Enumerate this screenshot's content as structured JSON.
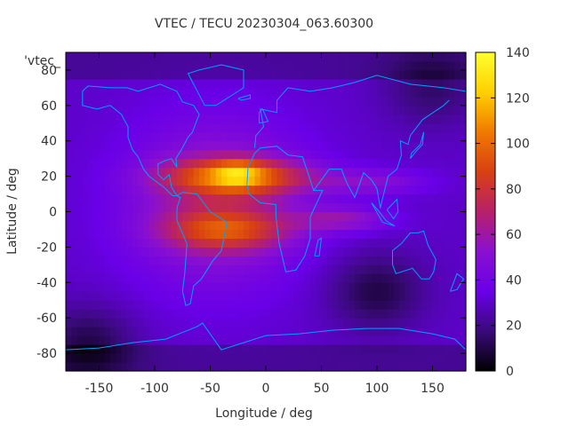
{
  "chart_data": {
    "type": "heatmap",
    "title": "VTEC / TECU 20230304_063.60300",
    "xlabel": "Longitude / deg",
    "ylabel": "Latitude / deg",
    "series_label": "'vtec_",
    "xlim": [
      -180,
      180
    ],
    "ylim": [
      -90,
      90
    ],
    "x_ticks": [
      -150,
      -100,
      -50,
      0,
      50,
      100,
      150
    ],
    "y_ticks": [
      -80,
      -60,
      -40,
      -20,
      0,
      20,
      40,
      60,
      80
    ],
    "x_tick_labels": [
      "-150",
      "-100",
      "-50",
      "0",
      "50",
      "100",
      "150"
    ],
    "y_tick_labels": [
      "-80",
      "-60",
      "-40",
      "-20",
      "0",
      "20",
      "40",
      "60",
      "80"
    ],
    "colorbar": {
      "range": [
        0,
        140
      ],
      "ticks": [
        0,
        20,
        40,
        60,
        80,
        100,
        120,
        140
      ],
      "tick_labels": [
        "0",
        "20",
        "40",
        "60",
        "80",
        "100",
        "120",
        "140"
      ],
      "palette": [
        "#000000",
        "#3a0a7a",
        "#6a00e8",
        "#8a10d0",
        "#b8206a",
        "#d84012",
        "#f07a00",
        "#ffd000",
        "#ffff30"
      ]
    },
    "grid": {
      "lon_step": 5,
      "lat_step": 5
    },
    "map_color": "#00a0ff",
    "structure": {
      "background_tec": 30,
      "peak_tec_max": 125,
      "peak_tec_location": {
        "lon": -25,
        "lat": 22
      },
      "enhancement_region_lon": [
        -120,
        130
      ],
      "equatorial_anomaly_crests_lat": [
        20,
        -8
      ],
      "low_tec_regions": [
        {
          "lon": 100,
          "lat": -45,
          "tec": 10
        },
        {
          "lon": -160,
          "lat": -75,
          "tec": 10
        },
        {
          "lon": 150,
          "lat": 70,
          "tec": 15
        }
      ]
    }
  }
}
